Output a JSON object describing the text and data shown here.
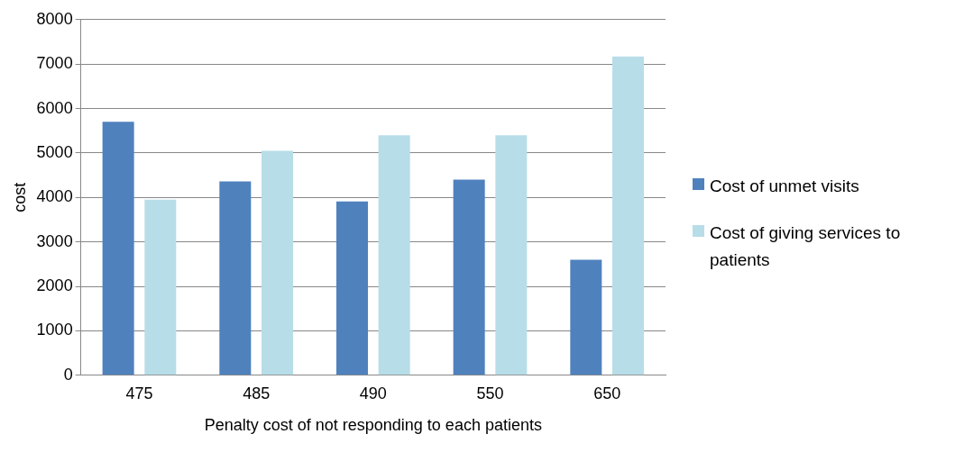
{
  "chart_data": {
    "type": "bar",
    "xlabel": "Penalty cost of not responding to each patients",
    "ylabel": "cost",
    "categories": [
      "475",
      "485",
      "490",
      "550",
      "650"
    ],
    "series": [
      {
        "name": "Cost of unmet visits",
        "color": "#4f81bd",
        "values": [
          5700,
          4360,
          3910,
          4400,
          2600
        ]
      },
      {
        "name": "Cost of giving services to patients",
        "color": "#b7dde8",
        "values": [
          3950,
          5050,
          5400,
          5400,
          7170
        ]
      }
    ],
    "ylim": [
      0,
      8000
    ],
    "yticks": [
      0,
      1000,
      2000,
      3000,
      4000,
      5000,
      6000,
      7000,
      8000
    ],
    "grid": "y",
    "legend": "right"
  }
}
